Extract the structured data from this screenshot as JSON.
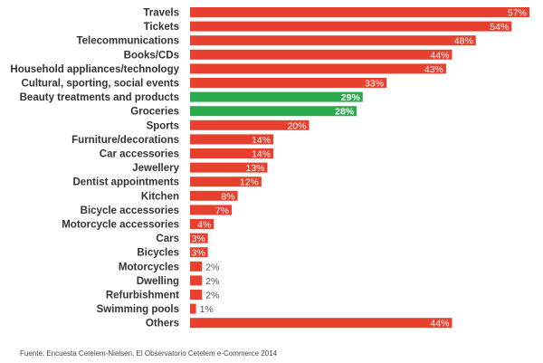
{
  "chart_data": {
    "type": "bar",
    "orientation": "horizontal",
    "categories": [
      "Travels",
      "Tickets",
      "Telecommunications",
      "Books/CDs",
      "Household appliances/technology",
      "Cultural, sporting, social events",
      "Beauty treatments and products",
      "Groceries",
      "Sports",
      "Furniture/decorations",
      "Car accessories",
      "Jewellery",
      "Dentist appointments",
      "Kitchen",
      "Bicycle accessories",
      "Motorcycle accessories",
      "Cars",
      "Bicycles",
      "Motorcycles",
      "Dwelling",
      "Refurbishment",
      "Swimming pools",
      "Others"
    ],
    "values": [
      57,
      54,
      48,
      44,
      43,
      33,
      29,
      28,
      20,
      14,
      14,
      13,
      12,
      8,
      7,
      4,
      3,
      3,
      2,
      2,
      2,
      1,
      44
    ],
    "value_suffix": "%",
    "highlighted": [
      "Beauty treatments and products",
      "Groceries"
    ],
    "colors": {
      "default_bar": "#e8402f",
      "highlight_bar": "#2cab4e",
      "label_inside": "#ffffff",
      "label_outside": "#555555"
    },
    "xlim": [
      0,
      57
    ],
    "grid": false,
    "legend": "none",
    "source": "Fuente: Encuesta Cetelem-Nielsen. El Observatorio Cetelem e-Commerce 2014"
  }
}
